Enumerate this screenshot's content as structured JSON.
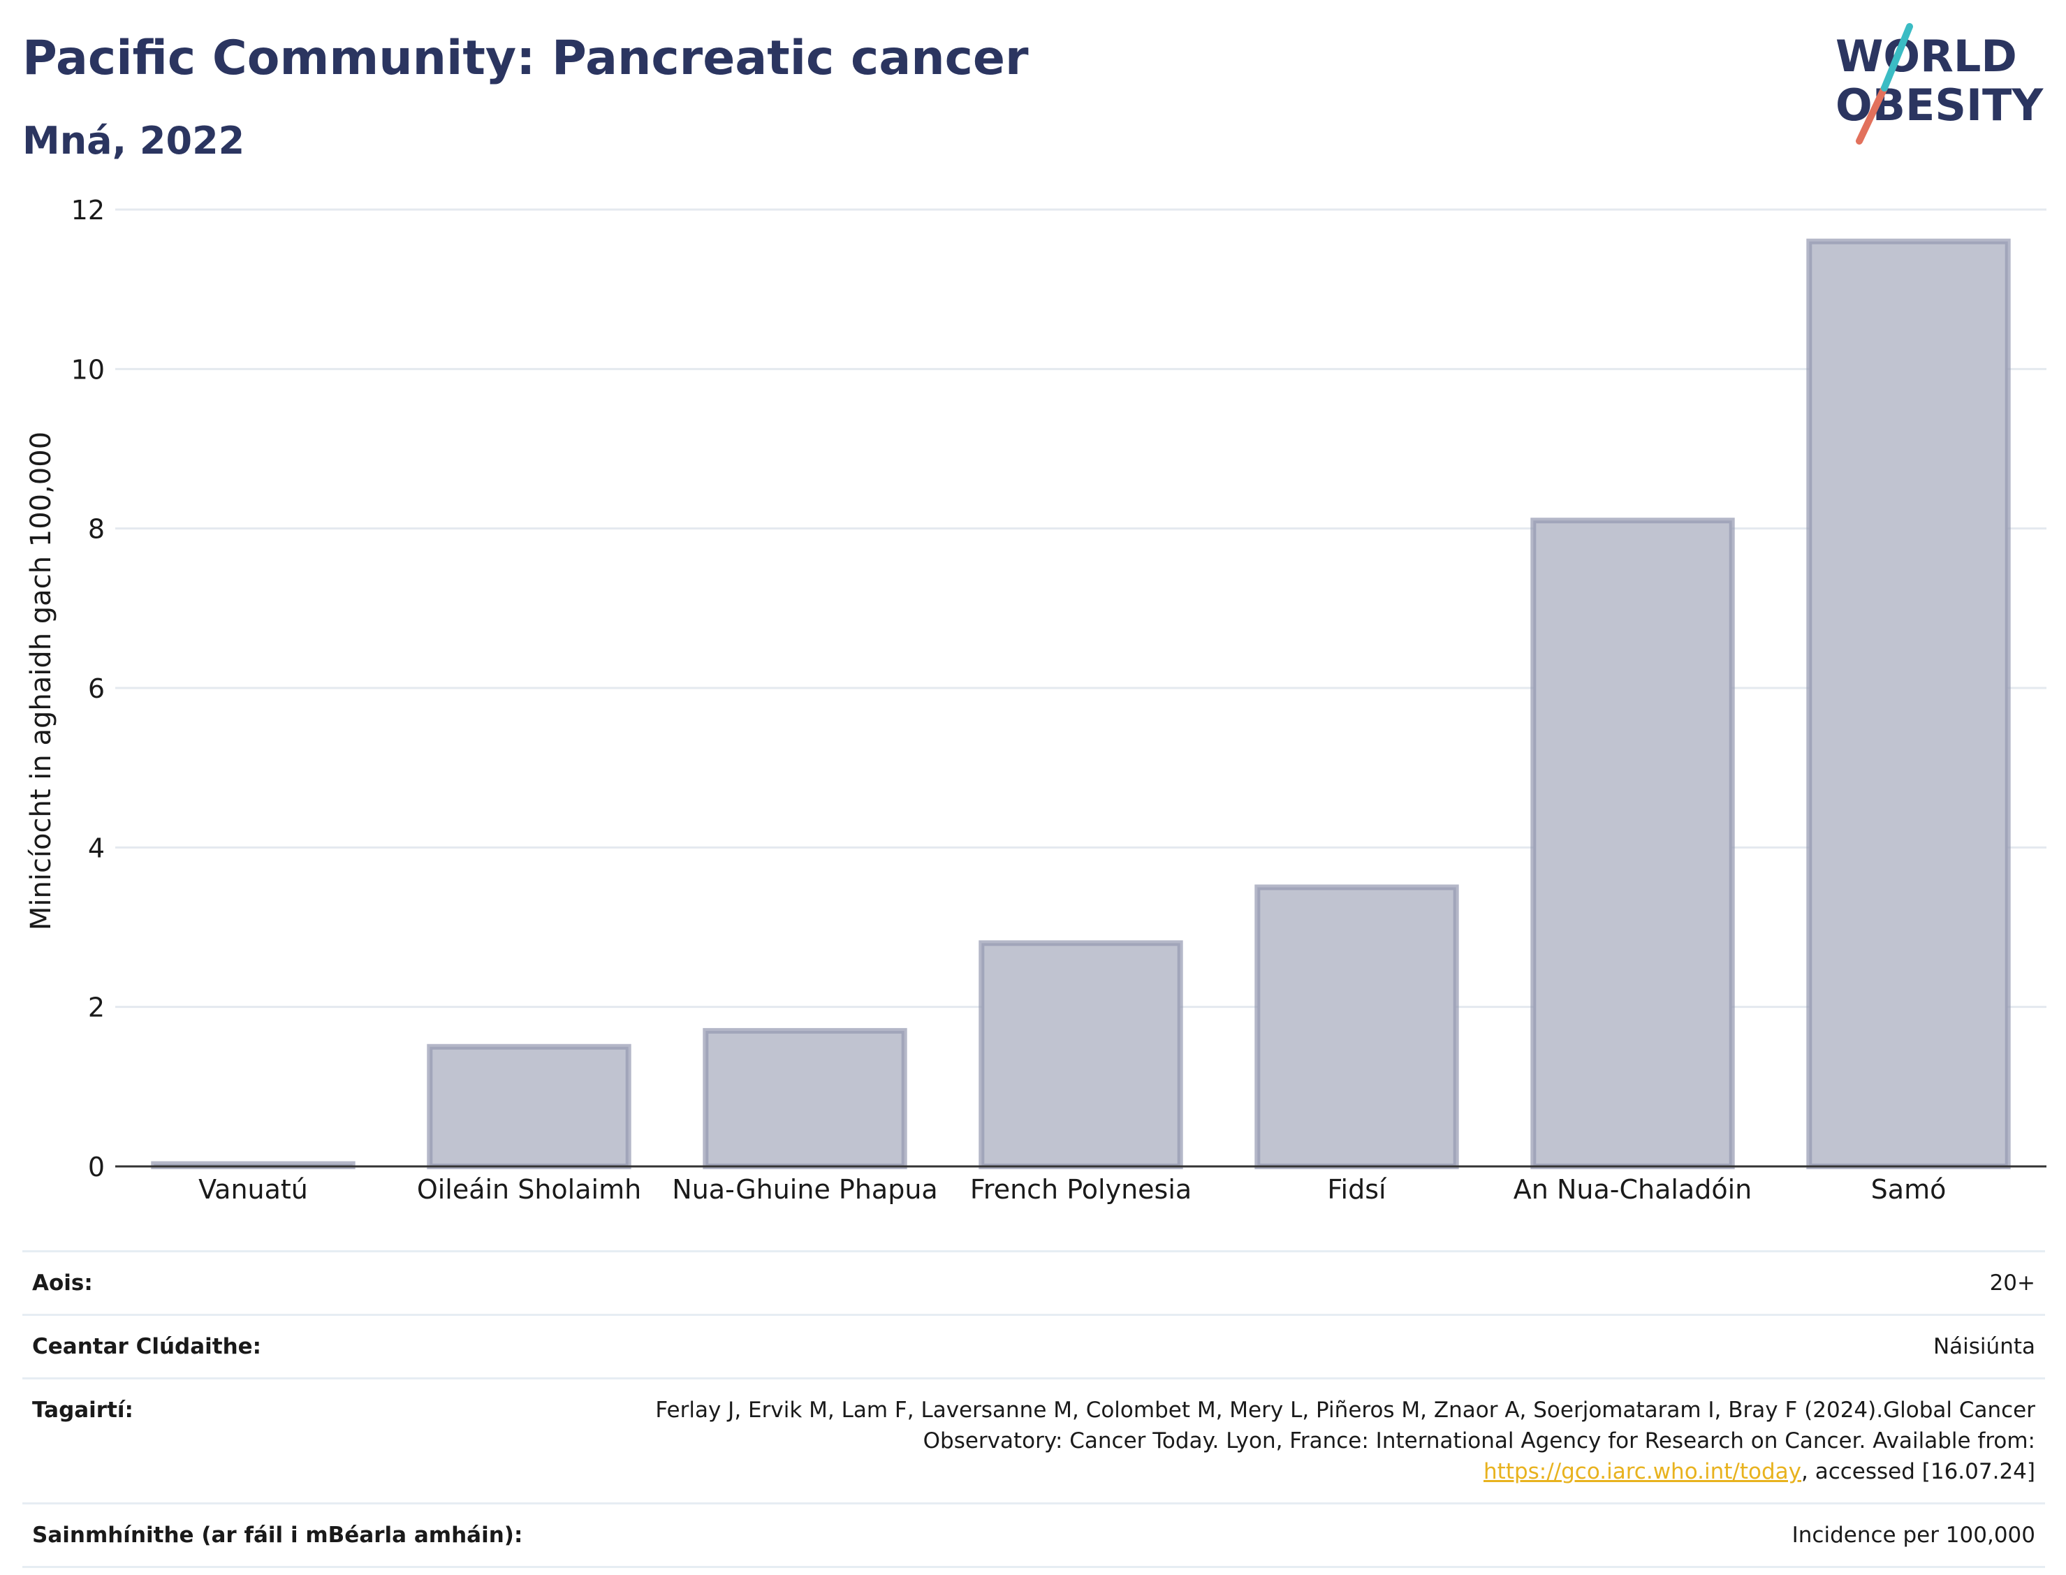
{
  "header": {
    "title": "Pacific Community: Pancreatic cancer",
    "subtitle": "Mná, 2022"
  },
  "logo": {
    "line1": "WORLD",
    "line2": "OBESITY"
  },
  "chart_data": {
    "type": "bar",
    "categories": [
      "Vanuatú",
      "Oileáin Sholaimh",
      "Nua-Ghuine Phapua",
      "French Polynesia",
      "Fidsí",
      "An Nua-Chaladóin",
      "Samó"
    ],
    "values": [
      0.03,
      1.5,
      1.7,
      2.8,
      3.5,
      8.1,
      11.6
    ],
    "ylabel": "Minicíocht in aghaidh gach 100,000",
    "ylim": [
      0,
      12
    ],
    "yticks": [
      "0",
      "2",
      "4",
      "6",
      "8",
      "10",
      "12"
    ],
    "grid": true,
    "bar_fill": "#c0c3d0",
    "bar_stroke": "#9499b0"
  },
  "meta": {
    "age_label": "Aois:",
    "age_value": "20+",
    "coverage_label": "Ceantar Clúdaithe:",
    "coverage_value": "Náisiúnta",
    "refs_label": "Tagairtí:",
    "refs_text_a": "Ferlay J, Ervik M, Lam F, Laversanne M, Colombet M, Mery L, Piñeros M, Znaor A, Soerjomataram I, Bray F (2024).Global Cancer Observatory: Cancer Today. Lyon, France: International Agency for Research on Cancer. Available from: ",
    "refs_link": "https://gco.iarc.who.int/today",
    "refs_text_b": ", accessed [16.07.24]",
    "defs_label": "Sainmhínithe (ar fáil i mBéarla amháin):",
    "defs_value": "Incidence per 100,000"
  }
}
